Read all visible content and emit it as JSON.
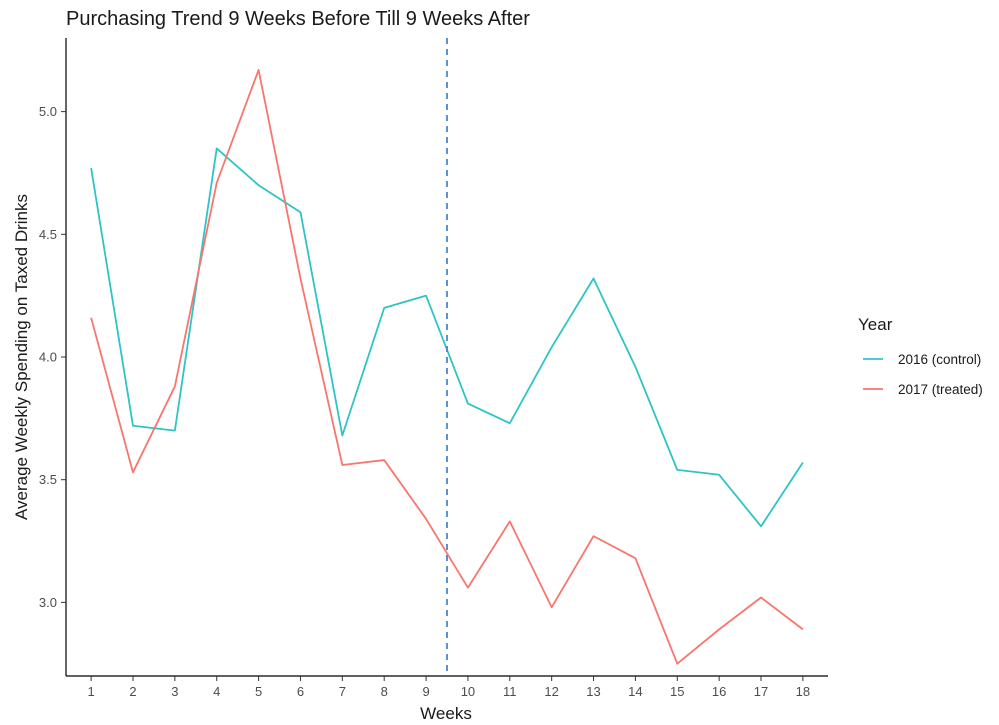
{
  "chart_data": {
    "type": "line",
    "title": "Purchasing Trend 9 Weeks Before Till 9 Weeks After",
    "xlabel": "Weeks",
    "ylabel": "Average Weekly Spending on Taxed Drinks",
    "x": [
      1,
      2,
      3,
      4,
      5,
      6,
      7,
      8,
      9,
      10,
      11,
      12,
      13,
      14,
      15,
      16,
      17,
      18
    ],
    "xticks": [
      "1",
      "2",
      "3",
      "4",
      "5",
      "6",
      "7",
      "8",
      "9",
      "10",
      "11",
      "12",
      "13",
      "14",
      "15",
      "16",
      "17",
      "18"
    ],
    "yticks": [
      "3.0",
      "3.5",
      "4.0",
      "4.5",
      "5.0"
    ],
    "ytick_values": [
      3.0,
      3.5,
      4.0,
      4.5,
      5.0
    ],
    "xlim": [
      0.4,
      18.6
    ],
    "ylim": [
      2.7,
      5.3
    ],
    "series": [
      {
        "name": "2016 (control)",
        "color": "#2ec4c6",
        "values": [
          4.77,
          3.72,
          3.7,
          4.85,
          4.7,
          4.59,
          3.68,
          4.2,
          4.25,
          3.81,
          3.73,
          4.04,
          4.32,
          3.96,
          3.54,
          3.52,
          3.31,
          3.57
        ]
      },
      {
        "name": "2017 (treated)",
        "color": "#f8766d",
        "values": [
          4.16,
          3.53,
          3.88,
          4.71,
          5.17,
          4.32,
          3.56,
          3.58,
          3.34,
          3.06,
          3.33,
          2.98,
          3.27,
          3.18,
          2.75,
          2.89,
          3.02,
          2.89
        ]
      }
    ],
    "vline": {
      "x": 9.5,
      "style": "dashed",
      "color": "#4a86c8"
    },
    "legend": {
      "title": "Year",
      "position": "right"
    },
    "grid": false
  }
}
